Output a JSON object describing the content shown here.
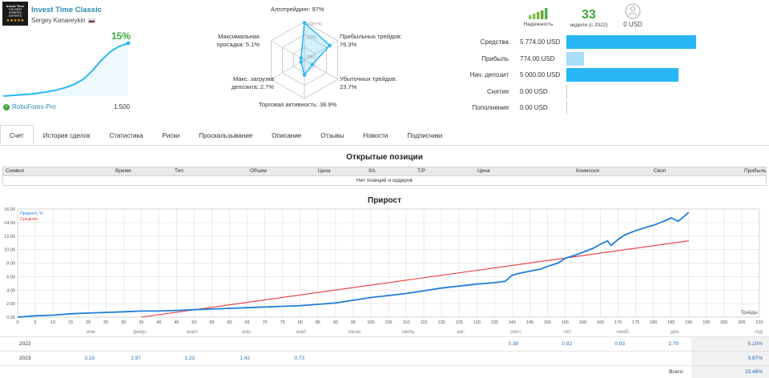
{
  "signal": {
    "logo_text": "Invest Time",
    "logo_sub": "THE BEST VERIFIED EXPERTS",
    "logo_stars": "★★★★★",
    "title": "Invest Time Classic",
    "author": "Sergey Kanareykin",
    "growth": "15%",
    "broker": "RoboForex-Pro",
    "leverage": "1:500",
    "growth_curve": [
      0,
      0.2,
      0.4,
      0.6,
      0.9,
      1.3,
      1.8,
      2.5,
      3.5,
      5.0,
      7.5,
      10.5,
      13.0,
      14.6,
      15.5
    ]
  },
  "radar": {
    "algo": "Алготрейдинг: 97%",
    "profit_trades": "Прибыльных трейдов: 76.3%",
    "loss_trades": "Убыточных трейдов: 23.7%",
    "activity": "Торговая активность: 38.9%",
    "deposit_load": "Макс. загрузка депозита: 2.7%",
    "drawdown": "Максимальная просадка: 5.1%",
    "ring_labels": [
      "100+%",
      "50%",
      "0%"
    ],
    "values": [
      97,
      76.3,
      23.7,
      38.9,
      2.7,
      5.1
    ]
  },
  "badges": {
    "reliability_label": "Надежность",
    "weeks_value": "33",
    "weeks_label": "недели (с 2022)",
    "subscribers_value": "0 USD"
  },
  "stats": [
    {
      "label": "Средства",
      "value": "5 774.00 USD",
      "fill": 1.0,
      "color": "#29b6f6"
    },
    {
      "label": "Прибыль",
      "value": "774.00 USD",
      "fill": 0.134,
      "color": "#a9def9"
    },
    {
      "label": "Нач. депозит",
      "value": "5 000.00 USD",
      "fill": 0.866,
      "color": "#29b6f6"
    },
    {
      "label": "Снятия",
      "value": "0.00 USD",
      "fill": 0,
      "color": "#29b6f6"
    },
    {
      "label": "Пополнения",
      "value": "0.00 USD",
      "fill": 0,
      "color": "#29b6f6"
    }
  ],
  "tabs": [
    "Счет",
    "История сделок",
    "Статистика",
    "Риски",
    "Проскальзывание",
    "Описание",
    "Отзывы",
    "Новости",
    "Подписчики"
  ],
  "positions": {
    "title": "Открытые позиции",
    "columns": [
      "Символ",
      "Время",
      "Тип",
      "Объем",
      "Цена",
      "S/L",
      "T/P",
      "Цена",
      "Комиссия",
      "Своп",
      "Прибыль"
    ],
    "empty": "Нет позиций и ордеров"
  },
  "growth_section": {
    "title": "Прирост"
  },
  "chart_data": {
    "type": "line",
    "title": "Прирост",
    "xlabel": "Трейды",
    "ylabel": "",
    "xlim": [
      0,
      210
    ],
    "ylim": [
      0,
      16
    ],
    "xticks": [
      0,
      5,
      10,
      15,
      20,
      25,
      30,
      35,
      40,
      45,
      50,
      55,
      60,
      65,
      70,
      75,
      80,
      85,
      90,
      95,
      100,
      105,
      110,
      115,
      120,
      125,
      130,
      135,
      140,
      145,
      150,
      155,
      160,
      165,
      170,
      175,
      180,
      185,
      190,
      195,
      200,
      205,
      210
    ],
    "yticks": [
      0,
      2,
      4,
      6,
      8,
      10,
      12,
      14,
      16
    ],
    "ytick_labels": [
      "0.00",
      "2.00",
      "4.00",
      "6.00",
      "8.00",
      "10.00",
      "12.00",
      "14.00",
      "16.00"
    ],
    "grid": true,
    "legend": "top-left",
    "series": [
      {
        "name": "Прирост, %",
        "color": "#1e7fd8",
        "x": [
          0,
          5,
          10,
          15,
          20,
          25,
          30,
          35,
          40,
          45,
          50,
          55,
          60,
          65,
          70,
          75,
          80,
          85,
          90,
          95,
          100,
          105,
          110,
          115,
          120,
          125,
          130,
          135,
          138,
          140,
          142,
          145,
          148,
          150,
          153,
          155,
          158,
          160,
          163,
          165,
          167,
          168,
          170,
          172,
          175,
          178,
          180,
          183,
          185,
          187,
          188,
          190
        ],
        "y": [
          0,
          0.2,
          0.3,
          0.5,
          0.6,
          0.7,
          0.8,
          0.9,
          0.9,
          1.0,
          1.1,
          1.2,
          1.3,
          1.4,
          1.5,
          1.6,
          1.7,
          1.9,
          2.1,
          2.5,
          2.9,
          3.2,
          3.5,
          3.9,
          4.3,
          4.6,
          4.9,
          5.1,
          5.3,
          6.2,
          6.5,
          6.8,
          7.1,
          7.5,
          8.0,
          8.7,
          9.2,
          9.6,
          10.2,
          10.8,
          11.3,
          10.6,
          11.5,
          12.2,
          12.8,
          13.3,
          13.6,
          14.2,
          14.7,
          14.2,
          14.6,
          15.5
        ]
      },
      {
        "name": "Средняя",
        "color": "#e53935",
        "x": [
          35,
          190
        ],
        "y": [
          0,
          11.3
        ]
      }
    ]
  },
  "yearly": {
    "months": [
      "янв.",
      "февр.",
      "март",
      "апр.",
      "май",
      "июнь",
      "июль",
      "авг.",
      "сент.",
      "окт.",
      "нояб.",
      "дек.",
      "год"
    ],
    "rows": [
      {
        "year": "2022",
        "values": [
          "",
          "",
          "",
          "",
          "",
          "",
          "",
          "",
          "0.38",
          "0.92",
          "0.93",
          "2.79"
        ],
        "total": "5.10%"
      },
      {
        "year": "2023",
        "values": [
          "3.18",
          "2.97",
          "1.23",
          "1.42",
          "0.73",
          "",
          "",
          "",
          "",
          "",
          "",
          ""
        ],
        "total": "9.87%"
      }
    ],
    "grand_label": "Всего:",
    "grand_total": "15.48%"
  },
  "colors": {
    "accent": "#2b8ab3",
    "green": "#3aa53a",
    "bar": "#29b6f6",
    "series": "#1e7fd8",
    "average": "#e53935"
  }
}
